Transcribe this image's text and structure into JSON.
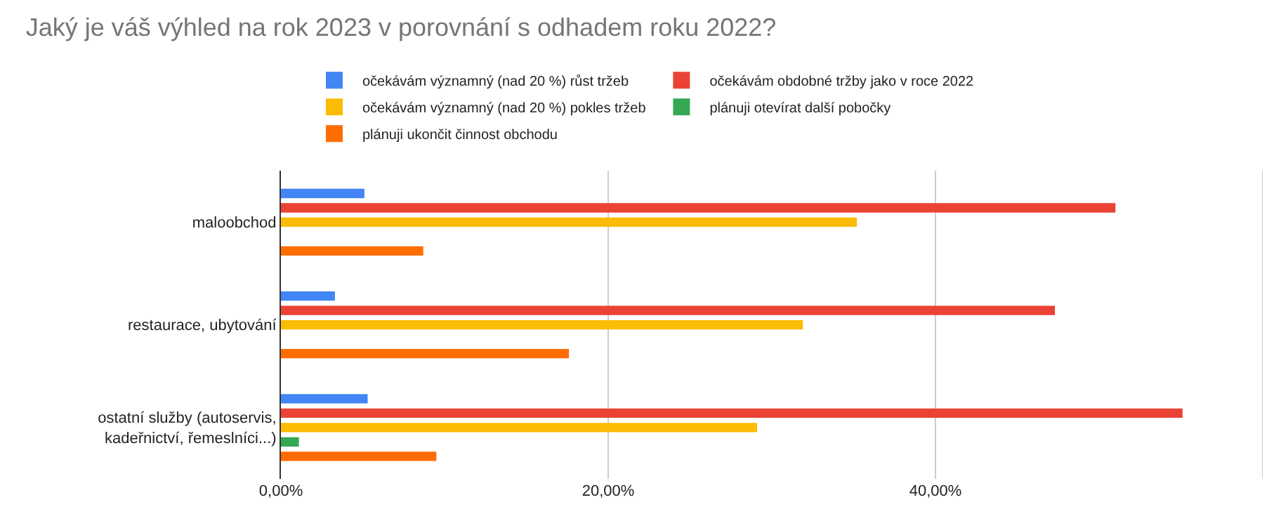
{
  "chart_data": {
    "type": "bar",
    "orientation": "horizontal",
    "title": "Jaký je váš výhled na rok 2023 v porovnání s odhadem roku 2022?",
    "categories": [
      "maloobchod",
      "restaurace, ubytování",
      "ostatní služby (autoservis,\nkadeřnictví, řemeslníci...)"
    ],
    "series": [
      {
        "name": "očekávám významný (nad 20 %) růst tržeb",
        "color": "#4285f4",
        "values": [
          5.1,
          3.3,
          5.3
        ]
      },
      {
        "name": "očekávám obdobné tržby jako v roce 2022",
        "color": "#ea4335",
        "values": [
          51.0,
          47.3,
          55.1
        ]
      },
      {
        "name": "očekávám významný (nad 20 %) pokles tržeb",
        "color": "#fbbc04",
        "values": [
          35.2,
          31.9,
          29.1
        ]
      },
      {
        "name": "plánuji otevírat další pobočky",
        "color": "#34a853",
        "values": [
          0,
          0,
          1.1
        ]
      },
      {
        "name": "plánuji ukončit činnost obchodu",
        "color": "#ff6d01",
        "values": [
          8.7,
          17.6,
          9.5
        ]
      }
    ],
    "xlim": [
      0,
      60
    ],
    "xticks": [
      {
        "value": 0,
        "label": "0,00%"
      },
      {
        "value": 20,
        "label": "20,00%"
      },
      {
        "value": 40,
        "label": "40,00%"
      },
      {
        "value": 60,
        "label": null
      }
    ],
    "grid": "x",
    "legend": "top"
  }
}
